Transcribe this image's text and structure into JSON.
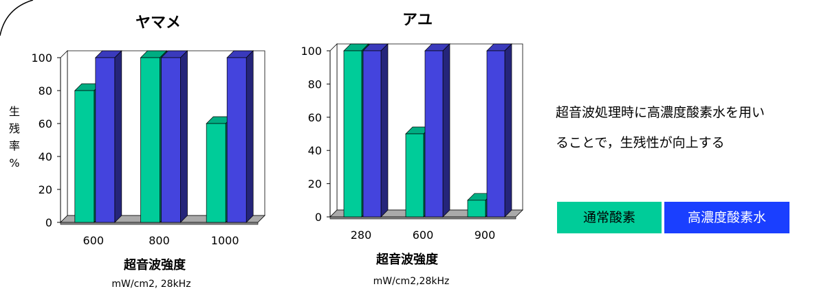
{
  "chart_data": [
    {
      "type": "bar",
      "title": "ヤマメ",
      "categories": [
        "600",
        "800",
        "1000"
      ],
      "series": [
        {
          "name": "通常酸素",
          "values": [
            80,
            100,
            60
          ],
          "color": "#00cc99"
        },
        {
          "name": "高濃度酸素水",
          "values": [
            100,
            100,
            100
          ],
          "color": "#4444dd"
        }
      ],
      "yticks": [
        0,
        20,
        40,
        60,
        80,
        100
      ],
      "ylim": [
        0,
        100
      ],
      "xlabel": "超音波強度",
      "xunit": "mW/cm2, 28kHz",
      "ylabel": [
        "生",
        "残",
        "率",
        "%"
      ],
      "grid": false,
      "style": "3d"
    },
    {
      "type": "bar",
      "title": "アユ",
      "categories": [
        "280",
        "600",
        "900"
      ],
      "series": [
        {
          "name": "通常酸素",
          "values": [
            100,
            50,
            10
          ],
          "color": "#00cc99"
        },
        {
          "name": "高濃度酸素水",
          "values": [
            100,
            100,
            100
          ],
          "color": "#4444dd"
        }
      ],
      "yticks": [
        0,
        20,
        40,
        60,
        80,
        100
      ],
      "ylim": [
        0,
        100
      ],
      "xlabel": "超音波強度",
      "xunit": "mW/cm2,28kHz",
      "grid": false,
      "style": "3d"
    }
  ],
  "note": [
    "超音波処理時に高濃度酸素水を用い",
    "ることで，生残性が向上する"
  ],
  "legend": {
    "placement": "right",
    "items": [
      {
        "label": "通常酸素",
        "color": "#00cc99"
      },
      {
        "label": "高濃度酸素水",
        "color": "#1a3fff"
      }
    ]
  }
}
